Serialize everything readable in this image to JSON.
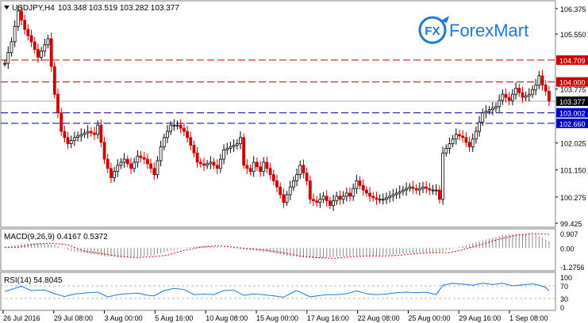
{
  "header": {
    "symbol": "USDJPY,H4",
    "ohlc": "103.348 103.519 103.282 103.377"
  },
  "logo": {
    "text_fx": "FX",
    "text_brand": "ForexMart"
  },
  "chart_data": {
    "type": "candlestick",
    "symbol": "USDJPY",
    "timeframe": "H4",
    "ylim": [
      99.425,
      106.5
    ],
    "y_ticks": [
      "106.375",
      "105.550",
      "104.709",
      "104.000",
      "103.775",
      "103.377",
      "103.002",
      "102.660",
      "102.025",
      "101.150",
      "100.275",
      "99.425"
    ],
    "x_ticks": [
      "26 Jul 2016",
      "29 Jul 08:00",
      "3 Aug 00:00",
      "5 Aug 16:00",
      "10 Aug 08:00",
      "15 Aug 00:00",
      "17 Aug 16:00",
      "22 Aug 08:00",
      "25 Aug 00:00",
      "29 Aug 16:00",
      "1 Sep 08:00"
    ],
    "levels": [
      {
        "value": 104.709,
        "label": "104.709",
        "color": "#cc0000",
        "style": "dashed"
      },
      {
        "value": 104.0,
        "label": "104.000",
        "color": "#cc0000",
        "style": "dashed"
      },
      {
        "value": 103.377,
        "label": "103.377",
        "color": "#aaaaaa",
        "style": "solid"
      },
      {
        "value": 103.002,
        "label": "103.002",
        "color": "#0000cc",
        "style": "dashed"
      },
      {
        "value": 102.66,
        "label": "102.660",
        "color": "#0000cc",
        "style": "dashed"
      }
    ],
    "price_path": [
      [
        0,
        104.6
      ],
      [
        2,
        105.3
      ],
      [
        4,
        106.3
      ],
      [
        6,
        105.7
      ],
      [
        8,
        105.3
      ],
      [
        10,
        104.8
      ],
      [
        13,
        105.4
      ],
      [
        15,
        103.6
      ],
      [
        17,
        102.4
      ],
      [
        19,
        102.0
      ],
      [
        21,
        102.2
      ],
      [
        23,
        102.3
      ],
      [
        25,
        102.4
      ],
      [
        27,
        102.3
      ],
      [
        28,
        102.6
      ],
      [
        30,
        101.5
      ],
      [
        32,
        100.9
      ],
      [
        34,
        101.3
      ],
      [
        36,
        101.5
      ],
      [
        38,
        101.2
      ],
      [
        40,
        101.6
      ],
      [
        42,
        101.5
      ],
      [
        44,
        101.2
      ],
      [
        45,
        101.0
      ],
      [
        47,
        101.9
      ],
      [
        48,
        102.2
      ],
      [
        50,
        102.6
      ],
      [
        52,
        102.6
      ],
      [
        54,
        102.4
      ],
      [
        55,
        102.2
      ],
      [
        57,
        101.7
      ],
      [
        58,
        101.4
      ],
      [
        60,
        101.3
      ],
      [
        62,
        101.4
      ],
      [
        64,
        101.2
      ],
      [
        66,
        101.8
      ],
      [
        68,
        101.9
      ],
      [
        70,
        102.0
      ],
      [
        71,
        102.2
      ],
      [
        72,
        101.3
      ],
      [
        74,
        101.1
      ],
      [
        75,
        101.4
      ],
      [
        77,
        101.1
      ],
      [
        78,
        101.4
      ],
      [
        80,
        101.0
      ],
      [
        82,
        100.6
      ],
      [
        84,
        100.1
      ],
      [
        86,
        100.6
      ],
      [
        88,
        101.0
      ],
      [
        89,
        101.3
      ],
      [
        91,
        100.8
      ],
      [
        92,
        100.2
      ],
      [
        94,
        100.1
      ],
      [
        96,
        100.3
      ],
      [
        98,
        100.0
      ],
      [
        100,
        100.3
      ],
      [
        101,
        100.2
      ],
      [
        103,
        100.4
      ],
      [
        104,
        100.3
      ],
      [
        106,
        100.8
      ],
      [
        108,
        100.5
      ],
      [
        110,
        100.3
      ],
      [
        112,
        100.2
      ],
      [
        114,
        100.2
      ],
      [
        116,
        100.3
      ],
      [
        118,
        100.4
      ],
      [
        120,
        100.5
      ],
      [
        122,
        100.6
      ],
      [
        124,
        100.5
      ],
      [
        126,
        100.6
      ],
      [
        128,
        100.5
      ],
      [
        130,
        100.5
      ],
      [
        131,
        100.2
      ],
      [
        132,
        101.7
      ],
      [
        134,
        102.0
      ],
      [
        136,
        102.3
      ],
      [
        138,
        102.2
      ],
      [
        140,
        101.9
      ],
      [
        142,
        102.4
      ],
      [
        144,
        103.0
      ],
      [
        146,
        103.1
      ],
      [
        148,
        103.2
      ],
      [
        150,
        103.6
      ],
      [
        152,
        103.4
      ],
      [
        154,
        103.8
      ],
      [
        156,
        103.5
      ],
      [
        158,
        103.6
      ],
      [
        160,
        103.9
      ],
      [
        161,
        104.2
      ],
      [
        162,
        103.9
      ],
      [
        163,
        103.7
      ],
      [
        164,
        103.377
      ]
    ],
    "indicators": [
      {
        "name": "MACD",
        "label": "MACD(9,26,9)",
        "main_value": 0.4167,
        "signal_value": 0.5372,
        "scale_labels": [
          "0.907",
          "0.00",
          "-1.2756"
        ],
        "ylim": [
          -1.2756,
          0.907
        ],
        "histogram_path": [
          [
            0,
            0.05
          ],
          [
            5,
            0.25
          ],
          [
            10,
            0.3
          ],
          [
            15,
            0.2
          ],
          [
            20,
            -0.2
          ],
          [
            25,
            -0.35
          ],
          [
            30,
            -0.5
          ],
          [
            35,
            -0.6
          ],
          [
            40,
            -0.55
          ],
          [
            45,
            -0.45
          ],
          [
            50,
            -0.15
          ],
          [
            55,
            0.05
          ],
          [
            60,
            0.15
          ],
          [
            65,
            0.05
          ],
          [
            70,
            -0.05
          ],
          [
            75,
            -0.15
          ],
          [
            80,
            -0.3
          ],
          [
            85,
            -0.5
          ],
          [
            90,
            -0.6
          ],
          [
            95,
            -0.65
          ],
          [
            100,
            -0.55
          ],
          [
            105,
            -0.5
          ],
          [
            110,
            -0.5
          ],
          [
            115,
            -0.45
          ],
          [
            120,
            -0.35
          ],
          [
            125,
            -0.3
          ],
          [
            130,
            -0.3
          ],
          [
            135,
            -0.05
          ],
          [
            140,
            0.25
          ],
          [
            145,
            0.55
          ],
          [
            150,
            0.8
          ],
          [
            155,
            0.9
          ],
          [
            160,
            0.85
          ],
          [
            164,
            0.42
          ]
        ]
      },
      {
        "name": "RSI",
        "label": "RSI(14)",
        "value": 54.8045,
        "scale_labels": [
          "100",
          "70",
          "30",
          "0"
        ],
        "ylim": [
          0,
          100
        ],
        "levels": [
          70,
          30
        ],
        "path": [
          [
            0,
            52
          ],
          [
            3,
            62
          ],
          [
            5,
            68
          ],
          [
            8,
            55
          ],
          [
            12,
            57
          ],
          [
            15,
            45
          ],
          [
            18,
            36
          ],
          [
            21,
            44
          ],
          [
            25,
            48
          ],
          [
            28,
            50
          ],
          [
            31,
            35
          ],
          [
            34,
            42
          ],
          [
            37,
            45
          ],
          [
            40,
            47
          ],
          [
            43,
            40
          ],
          [
            45,
            38
          ],
          [
            48,
            55
          ],
          [
            51,
            62
          ],
          [
            54,
            58
          ],
          [
            57,
            42
          ],
          [
            60,
            44
          ],
          [
            63,
            42
          ],
          [
            66,
            55
          ],
          [
            69,
            56
          ],
          [
            72,
            40
          ],
          [
            75,
            44
          ],
          [
            78,
            42
          ],
          [
            81,
            38
          ],
          [
            84,
            34
          ],
          [
            86,
            45
          ],
          [
            88,
            55
          ],
          [
            90,
            45
          ],
          [
            92,
            35
          ],
          [
            94,
            38
          ],
          [
            97,
            42
          ],
          [
            100,
            42
          ],
          [
            103,
            45
          ],
          [
            106,
            54
          ],
          [
            109,
            45
          ],
          [
            112,
            42
          ],
          [
            115,
            44
          ],
          [
            118,
            48
          ],
          [
            121,
            50
          ],
          [
            124,
            48
          ],
          [
            127,
            50
          ],
          [
            130,
            42
          ],
          [
            132,
            72
          ],
          [
            135,
            78
          ],
          [
            138,
            75
          ],
          [
            141,
            72
          ],
          [
            144,
            78
          ],
          [
            147,
            74
          ],
          [
            150,
            78
          ],
          [
            153,
            70
          ],
          [
            156,
            73
          ],
          [
            159,
            76
          ],
          [
            161,
            72
          ],
          [
            163,
            65
          ],
          [
            164,
            54.8
          ]
        ]
      }
    ]
  },
  "colors": {
    "bull": "#000000",
    "bear": "#cc0000",
    "macd_hist": "#888888",
    "macd_signal": "#cc0000",
    "rsi_line": "#1e78d6",
    "grid": "#c0c0c0",
    "logo_blue": "#1e78d6"
  }
}
